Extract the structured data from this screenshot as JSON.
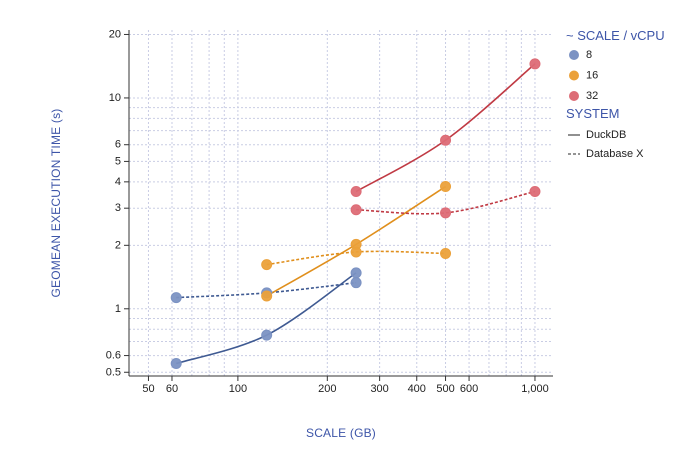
{
  "chart_data": {
    "type": "line",
    "title": "",
    "xlabel": "SCALE (GB)",
    "ylabel": "GEOMEAN EXECUTION TIME (s)",
    "x_scale": "log",
    "y_scale": "log",
    "xlim": [
      43,
      1150
    ],
    "ylim": [
      0.48,
      21
    ],
    "x_ticks": [
      {
        "value": 50,
        "label": "50"
      },
      {
        "value": 60,
        "label": "60"
      },
      {
        "value": 100,
        "label": "100"
      },
      {
        "value": 200,
        "label": "200"
      },
      {
        "value": 300,
        "label": "300"
      },
      {
        "value": 400,
        "label": "400"
      },
      {
        "value": 500,
        "label": "500"
      },
      {
        "value": 600,
        "label": "600"
      },
      {
        "value": 1000,
        "label": "1,000"
      }
    ],
    "y_ticks": [
      {
        "value": 0.5,
        "label": "0.5"
      },
      {
        "value": 0.6,
        "label": "0.6"
      },
      {
        "value": 1,
        "label": "1"
      },
      {
        "value": 2,
        "label": "2"
      },
      {
        "value": 3,
        "label": "3"
      },
      {
        "value": 4,
        "label": "4"
      },
      {
        "value": 5,
        "label": "5"
      },
      {
        "value": 6,
        "label": "6"
      },
      {
        "value": 10,
        "label": "10"
      },
      {
        "value": 20,
        "label": "20"
      }
    ],
    "legend": {
      "color_title": "~ SCALE / vCPU",
      "color_items": [
        {
          "label": "8",
          "color": "#7b92c3"
        },
        {
          "label": "16",
          "color": "#eba13a"
        },
        {
          "label": "32",
          "color": "#dd6c76"
        }
      ],
      "style_title": "SYSTEM",
      "style_items": [
        {
          "label": "DuckDB",
          "dash": "solid"
        },
        {
          "label": "Database X",
          "dash": "dashed"
        }
      ],
      "placement": "right"
    },
    "series": [
      {
        "name": "8 — DuckDB",
        "group": "8",
        "system": "DuckDB",
        "color": "#7b92c3",
        "line_color": "#3f5a92",
        "dash": "solid",
        "x": [
          62,
          125,
          250
        ],
        "y": [
          0.55,
          0.75,
          1.48
        ]
      },
      {
        "name": "8 — Database X",
        "group": "8",
        "system": "Database X",
        "color": "#7b92c3",
        "line_color": "#3f5a92",
        "dash": "dashed",
        "x": [
          62,
          125,
          250
        ],
        "y": [
          1.13,
          1.19,
          1.33
        ]
      },
      {
        "name": "16 — DuckDB",
        "group": "16",
        "system": "DuckDB",
        "color": "#eba13a",
        "line_color": "#e08f1c",
        "dash": "solid",
        "x": [
          125,
          250,
          500
        ],
        "y": [
          1.15,
          2.02,
          3.8
        ]
      },
      {
        "name": "16 — Database X",
        "group": "16",
        "system": "Database X",
        "color": "#eba13a",
        "line_color": "#e08f1c",
        "dash": "dashed",
        "x": [
          125,
          250,
          500
        ],
        "y": [
          1.62,
          1.86,
          1.83
        ]
      },
      {
        "name": "32 — DuckDB",
        "group": "32",
        "system": "DuckDB",
        "color": "#dd6c76",
        "line_color": "#c03a44",
        "dash": "solid",
        "x": [
          250,
          500,
          1000
        ],
        "y": [
          3.6,
          6.3,
          14.5
        ]
      },
      {
        "name": "32 — Database X",
        "group": "32",
        "system": "Database X",
        "color": "#dd6c76",
        "line_color": "#c03a44",
        "dash": "dashed",
        "x": [
          250,
          500,
          1000
        ],
        "y": [
          2.95,
          2.85,
          3.6
        ]
      }
    ]
  }
}
